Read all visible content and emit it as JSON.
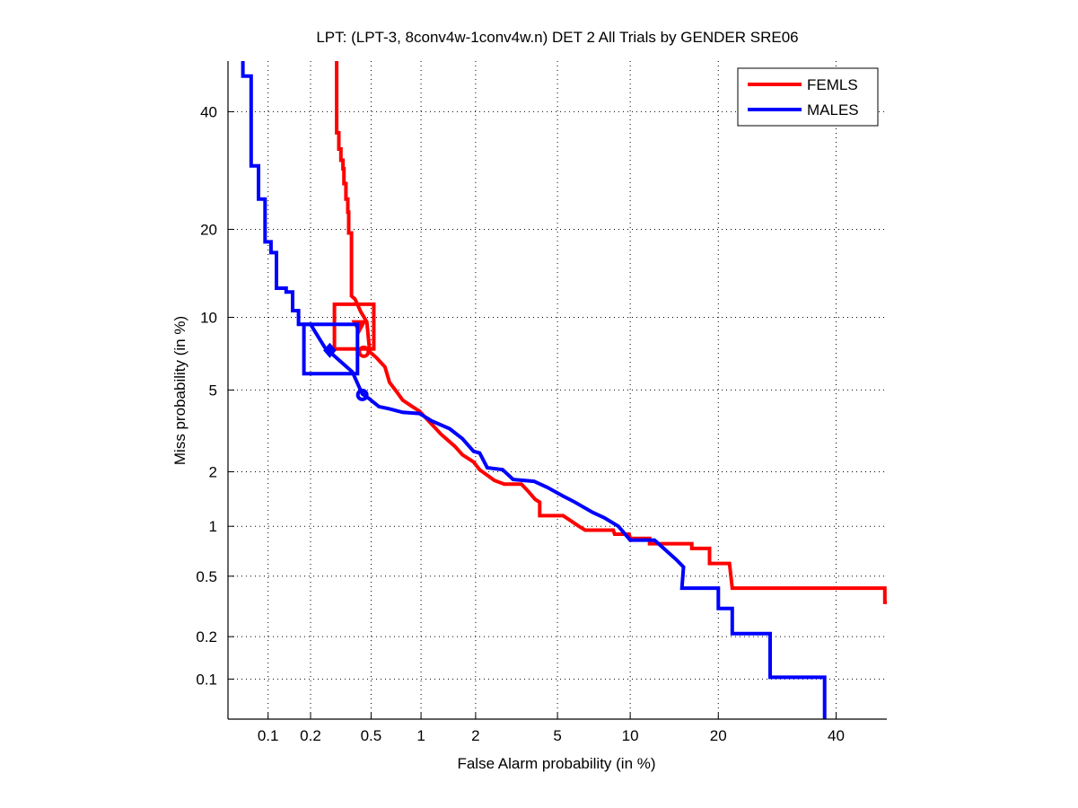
{
  "chart_data": {
    "type": "line",
    "subtype": "DET (probit-scaled axes)",
    "title": "LPT: (LPT-3, 8conv4w-1conv4w.n) DET 2 All Trials by GENDER SRE06",
    "xlabel": "False Alarm probability (in %)",
    "ylabel": "Miss probability (in %)",
    "xlim": [
      0.05,
      50
    ],
    "ylim": [
      0.05,
      50
    ],
    "x_scale": "probit",
    "y_scale": "probit",
    "x_ticks": [
      0.1,
      0.2,
      0.5,
      1,
      2,
      5,
      10,
      20,
      40
    ],
    "x_tick_labels": [
      "0.1",
      "0.2",
      "0.5",
      "1",
      "2",
      "5",
      "10",
      "20",
      "40"
    ],
    "y_ticks": [
      0.1,
      0.2,
      0.5,
      1,
      2,
      5,
      10,
      20,
      40
    ],
    "y_tick_labels": [
      "0.1",
      "0.2",
      "0.5",
      "1",
      "2",
      "5",
      "10",
      "20",
      "40"
    ],
    "grid": true,
    "legend_position": "top-right",
    "series": [
      {
        "name": "FEMLS",
        "color": "#ff0000",
        "points": [
          [
            0.3,
            50
          ],
          [
            0.3,
            36
          ],
          [
            0.31,
            36
          ],
          [
            0.31,
            33
          ],
          [
            0.32,
            33
          ],
          [
            0.32,
            31
          ],
          [
            0.33,
            31
          ],
          [
            0.33,
            29.5
          ],
          [
            0.335,
            29.5
          ],
          [
            0.335,
            27
          ],
          [
            0.345,
            27
          ],
          [
            0.345,
            24.5
          ],
          [
            0.355,
            24.5
          ],
          [
            0.355,
            22.5
          ],
          [
            0.36,
            22.5
          ],
          [
            0.36,
            19.5
          ],
          [
            0.375,
            19.5
          ],
          [
            0.375,
            12.0
          ],
          [
            0.395,
            11.7
          ],
          [
            0.43,
            10.5
          ],
          [
            0.47,
            9.6
          ],
          [
            0.49,
            7.3
          ],
          [
            0.54,
            6.9
          ],
          [
            0.61,
            6.3
          ],
          [
            0.65,
            5.4
          ],
          [
            0.72,
            4.9
          ],
          [
            0.78,
            4.5
          ],
          [
            0.89,
            4.2
          ],
          [
            0.98,
            4.0
          ],
          [
            1.14,
            3.5
          ],
          [
            1.3,
            3.1
          ],
          [
            1.55,
            2.7
          ],
          [
            1.7,
            2.45
          ],
          [
            1.95,
            2.25
          ],
          [
            2.1,
            2.05
          ],
          [
            2.5,
            1.8
          ],
          [
            2.8,
            1.72
          ],
          [
            3.4,
            1.72
          ],
          [
            3.65,
            1.58
          ],
          [
            3.95,
            1.42
          ],
          [
            4.15,
            1.37
          ],
          [
            4.15,
            1.15
          ],
          [
            5.3,
            1.15
          ],
          [
            5.7,
            1.08
          ],
          [
            6.2,
            1.0
          ],
          [
            6.6,
            0.95
          ],
          [
            8.6,
            0.95
          ],
          [
            8.7,
            0.9
          ],
          [
            9.9,
            0.9
          ],
          [
            10.0,
            0.85
          ],
          [
            11.8,
            0.85
          ],
          [
            11.8,
            0.79
          ],
          [
            16.5,
            0.79
          ],
          [
            16.5,
            0.74
          ],
          [
            18.8,
            0.74
          ],
          [
            18.8,
            0.6
          ],
          [
            21.6,
            0.6
          ],
          [
            22.0,
            0.42
          ],
          [
            49.6,
            0.42
          ],
          [
            49.6,
            0.34
          ],
          [
            50,
            0.34
          ]
        ],
        "actual_dcf_box": {
          "fa_range": [
            0.29,
            0.52
          ],
          "miss_range": [
            7.5,
            11.2
          ]
        },
        "min_dcf_marker": {
          "fa": 0.42,
          "miss": 9.3,
          "shape": "triangle"
        },
        "eer_marker": {
          "fa": 0.45,
          "miss": 7.3,
          "shape": "circle"
        }
      },
      {
        "name": "MALES",
        "color": "#0000ff",
        "points": [
          [
            0.065,
            50
          ],
          [
            0.065,
            47
          ],
          [
            0.075,
            47
          ],
          [
            0.075,
            30
          ],
          [
            0.085,
            30
          ],
          [
            0.085,
            24.5
          ],
          [
            0.095,
            24.5
          ],
          [
            0.095,
            18.3
          ],
          [
            0.105,
            18.3
          ],
          [
            0.105,
            16.9
          ],
          [
            0.115,
            16.9
          ],
          [
            0.115,
            12.8
          ],
          [
            0.135,
            12.8
          ],
          [
            0.135,
            12.4
          ],
          [
            0.15,
            12.4
          ],
          [
            0.15,
            10.6
          ],
          [
            0.165,
            10.6
          ],
          [
            0.165,
            9.4
          ],
          [
            0.2,
            9.4
          ],
          [
            0.25,
            7.6
          ],
          [
            0.38,
            6.0
          ],
          [
            0.44,
            4.8
          ],
          [
            0.48,
            4.6
          ],
          [
            0.56,
            4.2
          ],
          [
            0.65,
            4.1
          ],
          [
            0.78,
            3.95
          ],
          [
            0.98,
            3.9
          ],
          [
            1.15,
            3.6
          ],
          [
            1.45,
            3.3
          ],
          [
            1.7,
            2.95
          ],
          [
            1.95,
            2.55
          ],
          [
            2.1,
            2.5
          ],
          [
            2.3,
            2.1
          ],
          [
            2.75,
            2.05
          ],
          [
            3.1,
            1.82
          ],
          [
            3.9,
            1.78
          ],
          [
            4.5,
            1.65
          ],
          [
            5.3,
            1.48
          ],
          [
            5.9,
            1.38
          ],
          [
            7.1,
            1.2
          ],
          [
            7.9,
            1.12
          ],
          [
            9.0,
            1.0
          ],
          [
            10.0,
            0.83
          ],
          [
            12.3,
            0.83
          ],
          [
            14.7,
            0.63
          ],
          [
            15.5,
            0.57
          ],
          [
            15.3,
            0.42
          ],
          [
            20.0,
            0.42
          ],
          [
            20.0,
            0.31
          ],
          [
            22.0,
            0.31
          ],
          [
            22.0,
            0.21
          ],
          [
            28.0,
            0.21
          ],
          [
            28.0,
            0.103
          ],
          [
            37.8,
            0.103
          ],
          [
            37.8,
            0.05
          ]
        ],
        "actual_dcf_box": {
          "fa_range": [
            0.18,
            0.41
          ],
          "miss_range": [
            5.9,
            9.4
          ]
        },
        "min_dcf_marker": {
          "fa": 0.27,
          "miss": 7.4,
          "shape": "diamond"
        },
        "eer_marker": {
          "fa": 0.44,
          "miss": 4.75,
          "shape": "circle"
        }
      }
    ]
  }
}
